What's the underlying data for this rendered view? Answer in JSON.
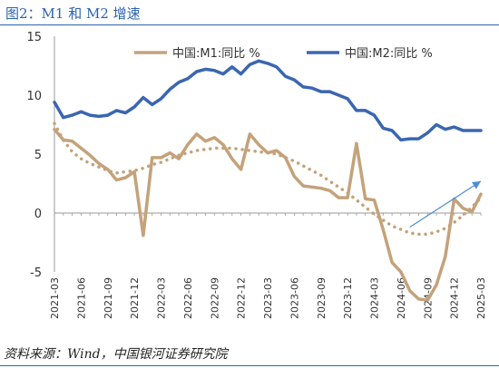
{
  "figure": {
    "title": "图2：M1 和 M2 增速",
    "source": "资料来源：Wind，中国银河证券研究院"
  },
  "colors": {
    "m1": "#c4a27a",
    "m1_trend": "#c4a27a",
    "m2": "#3a66b1",
    "arrow": "#4f8fd0",
    "axis": "#999999",
    "text": "#333333"
  },
  "chart_data": {
    "type": "line",
    "title": "",
    "xlabel": "",
    "ylabel": "",
    "ylim": [
      -5,
      15
    ],
    "yticks": [
      -5,
      0,
      5,
      10,
      15
    ],
    "grid": false,
    "legend_position": "top-right",
    "x_tick_labels": [
      "2021-03",
      "2021-06",
      "2021-09",
      "2021-12",
      "2022-03",
      "2022-06",
      "2022-09",
      "2022-12",
      "2023-03",
      "2023-06",
      "2023-09",
      "2023-12",
      "2024-03",
      "2024-06",
      "2024-09",
      "2024-12",
      "2025-03"
    ],
    "x": [
      "2021-03",
      "2021-04",
      "2021-05",
      "2021-06",
      "2021-07",
      "2021-08",
      "2021-09",
      "2021-10",
      "2021-11",
      "2021-12",
      "2022-01",
      "2022-02",
      "2022-03",
      "2022-04",
      "2022-05",
      "2022-06",
      "2022-07",
      "2022-08",
      "2022-09",
      "2022-10",
      "2022-11",
      "2022-12",
      "2023-01",
      "2023-02",
      "2023-03",
      "2023-04",
      "2023-05",
      "2023-06",
      "2023-07",
      "2023-08",
      "2023-09",
      "2023-10",
      "2023-11",
      "2023-12",
      "2024-01",
      "2024-02",
      "2024-03",
      "2024-04",
      "2024-05",
      "2024-06",
      "2024-07",
      "2024-08",
      "2024-09",
      "2024-10",
      "2024-11",
      "2024-12",
      "2025-01",
      "2025-02",
      "2025-03"
    ],
    "series": [
      {
        "name": "中国:M1:同比 %",
        "style": "solid",
        "values": [
          7.1,
          6.2,
          6.1,
          5.5,
          4.9,
          4.2,
          3.7,
          2.8,
          3.0,
          3.5,
          -1.9,
          4.7,
          4.7,
          5.1,
          4.6,
          5.8,
          6.7,
          6.1,
          6.4,
          5.8,
          4.6,
          3.7,
          6.7,
          5.8,
          5.1,
          5.3,
          4.7,
          3.1,
          2.3,
          2.2,
          2.1,
          1.9,
          1.3,
          1.3,
          5.9,
          1.2,
          1.1,
          -1.4,
          -4.2,
          -5.0,
          -6.6,
          -7.3,
          -7.4,
          -6.1,
          -3.7,
          1.2,
          0.4,
          0.1,
          1.6
        ]
      },
      {
        "name": "中国:M2:同比 %",
        "style": "solid",
        "values": [
          9.4,
          8.1,
          8.3,
          8.6,
          8.3,
          8.2,
          8.3,
          8.7,
          8.5,
          9.0,
          9.8,
          9.2,
          9.7,
          10.5,
          11.1,
          11.4,
          12.0,
          12.2,
          12.1,
          11.8,
          12.4,
          11.8,
          12.6,
          12.9,
          12.7,
          12.4,
          11.6,
          11.3,
          10.7,
          10.6,
          10.3,
          10.3,
          10.0,
          9.7,
          8.7,
          8.7,
          8.3,
          7.2,
          7.0,
          6.2,
          6.3,
          6.3,
          6.8,
          7.5,
          7.1,
          7.3,
          7.0,
          7.0,
          7.0
        ]
      },
      {
        "name": "",
        "style": "dotted",
        "values": [
          7.6,
          6.2,
          5.2,
          4.6,
          4.2,
          3.9,
          3.6,
          3.4,
          3.5,
          3.6,
          3.8,
          4.1,
          4.3,
          4.6,
          4.9,
          5.1,
          5.3,
          5.4,
          5.5,
          5.5,
          5.5,
          5.4,
          5.3,
          5.2,
          5.1,
          5.0,
          4.7,
          4.4,
          4.0,
          3.6,
          3.2,
          2.7,
          2.2,
          1.7,
          1.1,
          0.5,
          -0.1,
          -0.6,
          -1.1,
          -1.4,
          -1.7,
          -1.8,
          -1.8,
          -1.6,
          -1.3,
          -0.8,
          -0.2,
          0.5,
          1.3
        ]
      }
    ],
    "annotations": [
      {
        "type": "arrow",
        "from": [
          "2024-07",
          -1.2
        ],
        "to": [
          "2025-03",
          2.7
        ]
      }
    ]
  }
}
